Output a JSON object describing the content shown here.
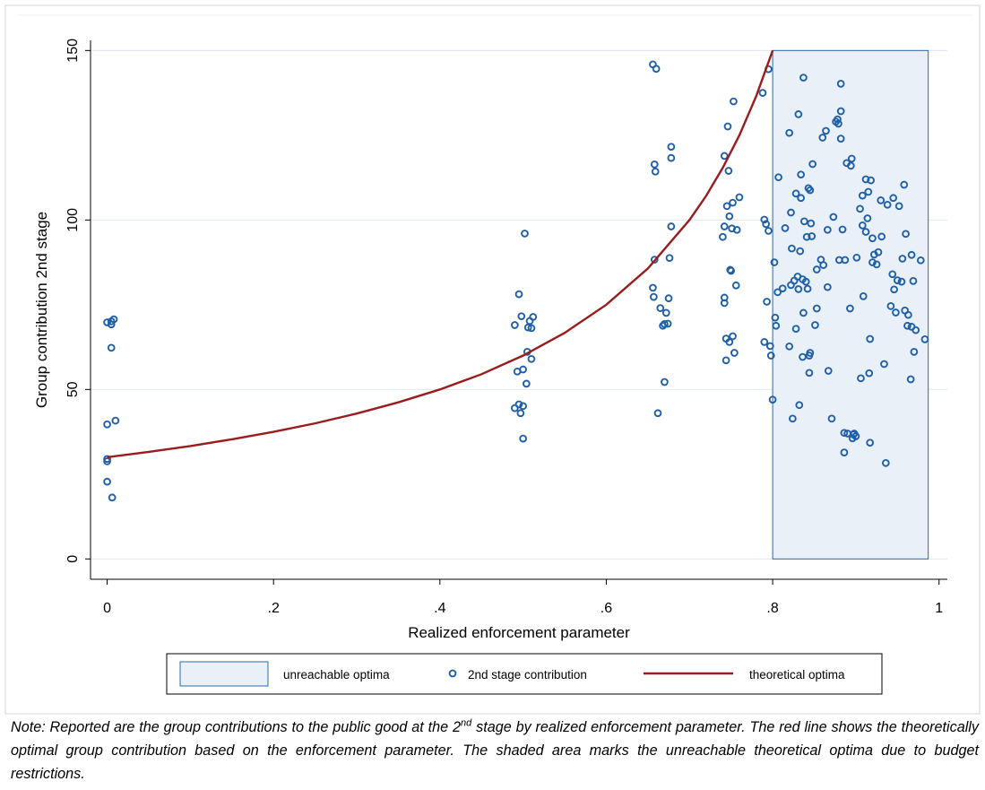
{
  "chart_data": {
    "type": "scatter",
    "xlabel": "Realized enforcement parameter",
    "ylabel": "Group contribution 2nd stage",
    "xlim": [
      -0.02,
      1.01
    ],
    "ylim": [
      -6,
      153
    ],
    "x_ticks": [
      0,
      0.2,
      0.4,
      0.6,
      0.8,
      1
    ],
    "x_tick_labels": [
      "0",
      ".2",
      ".4",
      ".6",
      ".8",
      "1"
    ],
    "y_ticks": [
      0,
      50,
      100,
      150
    ],
    "y_tick_labels": [
      "0",
      "50",
      "100",
      "150"
    ],
    "grid": "horizontal",
    "legend_position": "bottom",
    "legend": [
      {
        "label": "unreachable optima",
        "kind": "area"
      },
      {
        "label": "2nd stage contribution",
        "kind": "marker"
      },
      {
        "label": "theoretical optima",
        "kind": "line"
      }
    ],
    "shaded_region": {
      "name": "unreachable optima",
      "x0": 0.8,
      "x1": 0.987,
      "y0": 0,
      "y1": 150
    },
    "curve": {
      "name": "theoretical optima",
      "x": [
        0,
        0.05,
        0.1,
        0.15,
        0.2,
        0.25,
        0.3,
        0.35,
        0.4,
        0.45,
        0.5,
        0.55,
        0.6,
        0.65,
        0.7,
        0.72,
        0.74,
        0.76,
        0.78,
        0.8
      ],
      "y": [
        30,
        31.6,
        33.3,
        35.3,
        37.5,
        40,
        42.9,
        46.2,
        50,
        54.5,
        60,
        66.7,
        75,
        85.7,
        100,
        107.1,
        115.4,
        125,
        136.4,
        150
      ]
    },
    "series": [
      {
        "name": "2nd stage contribution",
        "points": [
          [
            0.0,
            39.7
          ],
          [
            0.0,
            29.5
          ],
          [
            0.0,
            28.8
          ],
          [
            0.0,
            22.8
          ],
          [
            0.0,
            69.8
          ],
          [
            0.005,
            70.1
          ],
          [
            0.005,
            69.2
          ],
          [
            0.008,
            70.7
          ],
          [
            0.005,
            62.3
          ],
          [
            0.01,
            40.8
          ],
          [
            0.006,
            18.1
          ],
          [
            0.49,
            69.0
          ],
          [
            0.493,
            55.3
          ],
          [
            0.495,
            78.1
          ],
          [
            0.49,
            44.5
          ],
          [
            0.495,
            45.6
          ],
          [
            0.497,
            43.0
          ],
          [
            0.5,
            35.5
          ],
          [
            0.498,
            71.6
          ],
          [
            0.502,
            96.0
          ],
          [
            0.5,
            55.9
          ],
          [
            0.5,
            45.1
          ],
          [
            0.505,
            61.1
          ],
          [
            0.504,
            51.7
          ],
          [
            0.506,
            68.3
          ],
          [
            0.508,
            70.2
          ],
          [
            0.51,
            59.0
          ],
          [
            0.51,
            68.1
          ],
          [
            0.512,
            71.4
          ],
          [
            0.656,
            145.9
          ],
          [
            0.66,
            144.6
          ],
          [
            0.658,
            116.4
          ],
          [
            0.659,
            114.3
          ],
          [
            0.658,
            88.3
          ],
          [
            0.656,
            80.0
          ],
          [
            0.657,
            77.3
          ],
          [
            0.662,
            43.0
          ],
          [
            0.665,
            74.0
          ],
          [
            0.668,
            68.8
          ],
          [
            0.67,
            69.3
          ],
          [
            0.67,
            52.2
          ],
          [
            0.672,
            72.6
          ],
          [
            0.674,
            69.4
          ],
          [
            0.675,
            76.9
          ],
          [
            0.676,
            88.8
          ],
          [
            0.678,
            98.1
          ],
          [
            0.678,
            121.6
          ],
          [
            0.678,
            118.3
          ],
          [
            0.74,
            95.0
          ],
          [
            0.742,
            98.1
          ],
          [
            0.742,
            118.9
          ],
          [
            0.742,
            77.1
          ],
          [
            0.742,
            75.5
          ],
          [
            0.744,
            65.0
          ],
          [
            0.744,
            58.6
          ],
          [
            0.745,
            104.1
          ],
          [
            0.746,
            127.6
          ],
          [
            0.747,
            114.5
          ],
          [
            0.748,
            101.1
          ],
          [
            0.748,
            64.0
          ],
          [
            0.749,
            85.3
          ],
          [
            0.75,
            85.0
          ],
          [
            0.751,
            97.5
          ],
          [
            0.752,
            65.7
          ],
          [
            0.752,
            105.1
          ],
          [
            0.753,
            135.0
          ],
          [
            0.754,
            60.8
          ],
          [
            0.756,
            80.7
          ],
          [
            0.757,
            97.1
          ],
          [
            0.76,
            106.7
          ],
          [
            0.788,
            137.5
          ],
          [
            0.79,
            100.1
          ],
          [
            0.79,
            64.0
          ],
          [
            0.792,
            98.8
          ],
          [
            0.793,
            75.9
          ],
          [
            0.795,
            96.8
          ],
          [
            0.795,
            144.5
          ],
          [
            0.797,
            62.8
          ],
          [
            0.798,
            60.0
          ],
          [
            0.8,
            47.0
          ],
          [
            0.802,
            87.5
          ],
          [
            0.803,
            71.2
          ],
          [
            0.804,
            68.8
          ],
          [
            0.806,
            78.7
          ],
          [
            0.807,
            112.6
          ],
          [
            0.812,
            79.8
          ],
          [
            0.815,
            97.6
          ],
          [
            0.82,
            62.7
          ],
          [
            0.82,
            125.7
          ],
          [
            0.822,
            80.8
          ],
          [
            0.822,
            102.2
          ],
          [
            0.823,
            91.6
          ],
          [
            0.824,
            41.4
          ],
          [
            0.826,
            82.1
          ],
          [
            0.828,
            107.8
          ],
          [
            0.828,
            67.9
          ],
          [
            0.83,
            83.3
          ],
          [
            0.831,
            131.2
          ],
          [
            0.831,
            79.6
          ],
          [
            0.832,
            45.4
          ],
          [
            0.833,
            90.8
          ],
          [
            0.834,
            106.5
          ],
          [
            0.834,
            113.4
          ],
          [
            0.836,
            59.6
          ],
          [
            0.836,
            82.5
          ],
          [
            0.837,
            142.0
          ],
          [
            0.837,
            72.6
          ],
          [
            0.838,
            99.6
          ],
          [
            0.84,
            81.8
          ],
          [
            0.841,
            95.0
          ],
          [
            0.842,
            79.7
          ],
          [
            0.843,
            109.4
          ],
          [
            0.844,
            54.9
          ],
          [
            0.844,
            60.0
          ],
          [
            0.845,
            60.8
          ],
          [
            0.845,
            108.8
          ],
          [
            0.846,
            99.0
          ],
          [
            0.847,
            95.2
          ],
          [
            0.848,
            116.5
          ],
          [
            0.851,
            69.0
          ],
          [
            0.853,
            73.9
          ],
          [
            0.853,
            85.4
          ],
          [
            0.858,
            88.3
          ],
          [
            0.86,
            124.3
          ],
          [
            0.861,
            86.7
          ],
          [
            0.864,
            126.3
          ],
          [
            0.866,
            97.1
          ],
          [
            0.866,
            80.2
          ],
          [
            0.867,
            55.5
          ],
          [
            0.871,
            41.4
          ],
          [
            0.873,
            100.9
          ],
          [
            0.876,
            129.0
          ],
          [
            0.878,
            129.7
          ],
          [
            0.879,
            128.4
          ],
          [
            0.88,
            88.2
          ],
          [
            0.882,
            132.1
          ],
          [
            0.882,
            140.2
          ],
          [
            0.882,
            124.0
          ],
          [
            0.884,
            97.2
          ],
          [
            0.886,
            31.4
          ],
          [
            0.886,
            37.2
          ],
          [
            0.887,
            88.2
          ],
          [
            0.889,
            116.8
          ],
          [
            0.89,
            37.0
          ],
          [
            0.893,
            73.9
          ],
          [
            0.894,
            116.0
          ],
          [
            0.895,
            118.1
          ],
          [
            0.896,
            35.6
          ],
          [
            0.897,
            36.7
          ],
          [
            0.898,
            37.0
          ],
          [
            0.9,
            36.2
          ],
          [
            0.901,
            88.9
          ],
          [
            0.905,
            103.3
          ],
          [
            0.906,
            53.3
          ],
          [
            0.908,
            107.2
          ],
          [
            0.908,
            98.4
          ],
          [
            0.909,
            77.5
          ],
          [
            0.912,
            96.5
          ],
          [
            0.912,
            112.0
          ],
          [
            0.914,
            100.5
          ],
          [
            0.915,
            108.3
          ],
          [
            0.916,
            54.8
          ],
          [
            0.917,
            64.9
          ],
          [
            0.917,
            34.3
          ],
          [
            0.918,
            111.7
          ],
          [
            0.92,
            87.5
          ],
          [
            0.92,
            94.6
          ],
          [
            0.922,
            89.8
          ],
          [
            0.925,
            86.9
          ],
          [
            0.927,
            90.5
          ],
          [
            0.93,
            105.8
          ],
          [
            0.931,
            95.1
          ],
          [
            0.934,
            57.5
          ],
          [
            0.936,
            28.3
          ],
          [
            0.938,
            104.5
          ],
          [
            0.942,
            74.6
          ],
          [
            0.944,
            84.0
          ],
          [
            0.945,
            106.5
          ],
          [
            0.946,
            79.5
          ],
          [
            0.948,
            72.7
          ],
          [
            0.95,
            82.2
          ],
          [
            0.952,
            104.1
          ],
          [
            0.955,
            81.8
          ],
          [
            0.956,
            88.6
          ],
          [
            0.958,
            110.4
          ],
          [
            0.959,
            73.3
          ],
          [
            0.96,
            95.9
          ],
          [
            0.962,
            68.8
          ],
          [
            0.963,
            72.0
          ],
          [
            0.966,
            53.0
          ],
          [
            0.967,
            89.7
          ],
          [
            0.967,
            68.5
          ],
          [
            0.969,
            82.0
          ],
          [
            0.97,
            61.1
          ],
          [
            0.972,
            67.5
          ],
          [
            0.978,
            88.1
          ],
          [
            0.983,
            64.8
          ]
        ]
      }
    ],
    "note_parts": [
      "Note: Reported are the group contributions to the public good at the 2",
      "nd",
      " stage by realized enforcement parameter. The red line shows the theoretically optimal group contribution based on the enforcement parameter. The shaded area marks the unreachable theoretical optima due to budget restrictions."
    ],
    "colors": {
      "marker": "#1f5fa8",
      "curve": "#9a1c1c",
      "shade_fill": "#eaf0f7",
      "shade_stroke": "#2d68a8",
      "grid": "#e3e9ef",
      "axis": "#000000"
    }
  }
}
